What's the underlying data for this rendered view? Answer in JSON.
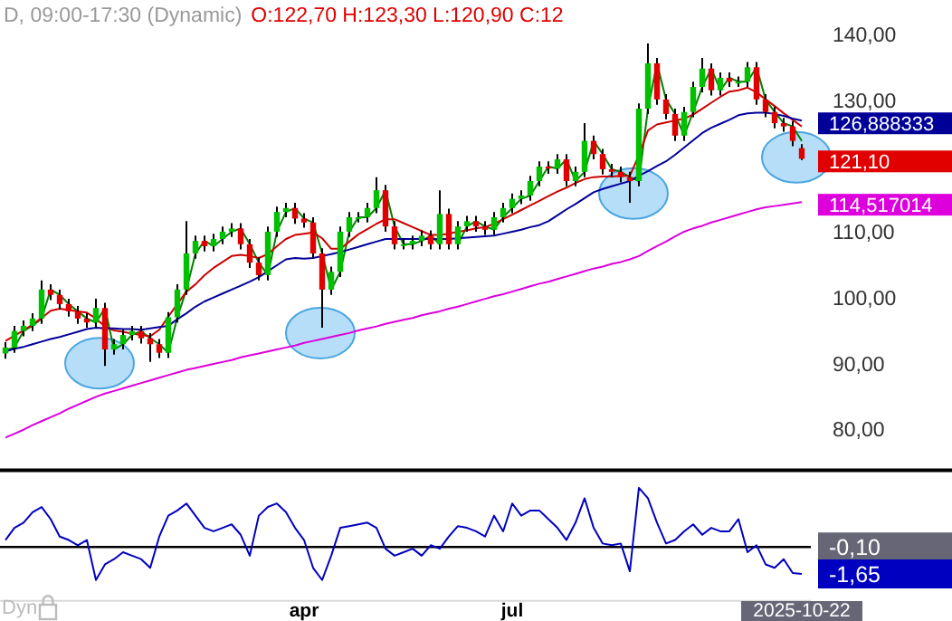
{
  "chart_data": [
    {
      "type": "candlestick",
      "title": "D, 09:00-17:30 (Dynamic)",
      "subtitle": "O:122,70 H:123,30 L:120,90 C:12",
      "ohlc": [
        [
          91.5,
          93.2,
          90.7,
          92.4
        ],
        [
          92.4,
          95.7,
          91.6,
          94.9
        ],
        [
          94.9,
          96.5,
          94.1,
          95.7
        ],
        [
          95.7,
          97.6,
          94.9,
          96.8
        ],
        [
          96.8,
          102.6,
          96.0,
          101.2
        ],
        [
          101.2,
          102.0,
          99.6,
          100.4
        ],
        [
          100.4,
          101.2,
          98.2,
          99.0
        ],
        [
          99.0,
          99.8,
          97.1,
          97.9
        ],
        [
          97.9,
          98.7,
          96.0,
          96.8
        ],
        [
          96.8,
          97.6,
          95.4,
          96.2
        ],
        [
          96.2,
          99.8,
          95.4,
          98.4
        ],
        [
          98.4,
          99.2,
          89.6,
          92.1
        ],
        [
          92.1,
          93.7,
          91.3,
          92.9
        ],
        [
          92.9,
          95.1,
          92.1,
          94.3
        ],
        [
          94.3,
          95.7,
          93.5,
          94.9
        ],
        [
          94.9,
          95.7,
          93.0,
          93.8
        ],
        [
          93.8,
          94.6,
          90.2,
          92.9
        ],
        [
          92.9,
          93.7,
          90.8,
          91.6
        ],
        [
          91.6,
          97.8,
          90.8,
          97.0
        ],
        [
          97.0,
          102.0,
          96.2,
          101.2
        ],
        [
          101.2,
          111.6,
          100.4,
          106.7
        ],
        [
          106.7,
          109.4,
          105.9,
          108.6
        ],
        [
          108.6,
          109.4,
          107.0,
          107.8
        ],
        [
          107.8,
          109.7,
          107.0,
          108.9
        ],
        [
          108.9,
          110.8,
          108.1,
          110.0
        ],
        [
          110.0,
          111.3,
          109.2,
          110.5
        ],
        [
          110.5,
          111.3,
          107.3,
          108.1
        ],
        [
          108.1,
          108.9,
          104.5,
          105.3
        ],
        [
          105.3,
          106.1,
          102.6,
          103.4
        ],
        [
          103.4,
          110.8,
          102.6,
          110.0
        ],
        [
          110.0,
          113.8,
          109.2,
          113.0
        ],
        [
          113.0,
          114.4,
          112.2,
          113.6
        ],
        [
          113.6,
          114.4,
          111.2,
          112.0
        ],
        [
          112.0,
          112.8,
          110.6,
          111.4
        ],
        [
          111.4,
          112.2,
          105.9,
          106.7
        ],
        [
          106.7,
          107.5,
          95.4,
          101.2
        ],
        [
          101.2,
          104.7,
          100.4,
          103.9
        ],
        [
          103.9,
          110.8,
          103.1,
          110.0
        ],
        [
          110.0,
          113.0,
          109.2,
          112.2
        ],
        [
          112.2,
          113.0,
          111.4,
          112.2
        ],
        [
          112.2,
          114.4,
          111.4,
          113.6
        ],
        [
          113.6,
          118.3,
          112.8,
          116.3
        ],
        [
          116.3,
          117.1,
          110.0,
          110.8
        ],
        [
          110.8,
          111.6,
          107.3,
          108.1
        ],
        [
          108.1,
          108.9,
          107.3,
          108.1
        ],
        [
          108.1,
          109.4,
          107.3,
          108.6
        ],
        [
          108.6,
          110.2,
          107.8,
          109.4
        ],
        [
          109.4,
          110.2,
          107.3,
          108.1
        ],
        [
          108.1,
          116.3,
          107.3,
          112.7
        ],
        [
          112.7,
          113.5,
          107.3,
          108.1
        ],
        [
          108.1,
          111.6,
          107.3,
          110.8
        ],
        [
          110.8,
          112.4,
          110.0,
          111.6
        ],
        [
          111.6,
          112.4,
          110.0,
          110.8
        ],
        [
          110.8,
          111.6,
          109.5,
          110.3
        ],
        [
          110.3,
          113.0,
          109.5,
          112.2
        ],
        [
          112.2,
          114.4,
          111.4,
          113.6
        ],
        [
          113.6,
          115.8,
          112.8,
          115.0
        ],
        [
          115.0,
          116.3,
          114.2,
          115.5
        ],
        [
          115.5,
          118.5,
          114.7,
          117.7
        ],
        [
          117.7,
          120.7,
          116.9,
          119.9
        ],
        [
          119.9,
          120.7,
          118.8,
          119.6
        ],
        [
          119.6,
          121.8,
          118.8,
          121.0
        ],
        [
          121.0,
          121.8,
          116.9,
          117.7
        ],
        [
          117.7,
          119.9,
          116.9,
          119.1
        ],
        [
          119.1,
          126.5,
          118.3,
          123.8
        ],
        [
          123.8,
          124.6,
          121.0,
          121.8
        ],
        [
          121.8,
          122.6,
          118.7,
          119.5
        ],
        [
          119.5,
          120.3,
          118.3,
          119.1
        ],
        [
          119.1,
          119.9,
          117.5,
          118.3
        ],
        [
          118.3,
          119.1,
          114.4,
          117.7
        ],
        [
          117.7,
          129.5,
          116.9,
          128.7
        ],
        [
          128.7,
          138.6,
          127.9,
          135.6
        ],
        [
          135.6,
          136.4,
          129.3,
          130.1
        ],
        [
          130.1,
          130.9,
          127.1,
          127.9
        ],
        [
          127.9,
          128.7,
          123.8,
          124.6
        ],
        [
          124.6,
          129.0,
          123.8,
          128.2
        ],
        [
          128.2,
          132.8,
          127.4,
          132.0
        ],
        [
          132.0,
          136.4,
          131.2,
          134.8
        ],
        [
          134.8,
          135.6,
          130.7,
          131.5
        ],
        [
          131.5,
          134.2,
          130.7,
          133.4
        ],
        [
          133.4,
          134.2,
          132.0,
          132.8
        ],
        [
          132.8,
          133.6,
          132.0,
          132.8
        ],
        [
          132.8,
          135.8,
          132.0,
          135.0
        ],
        [
          135.0,
          135.8,
          129.3,
          130.1
        ],
        [
          130.1,
          130.9,
          127.4,
          128.2
        ],
        [
          128.2,
          129.0,
          125.7,
          126.5
        ],
        [
          126.5,
          127.3,
          125.2,
          126.0
        ],
        [
          126.0,
          126.8,
          123.0,
          123.8
        ],
        [
          122.7,
          123.3,
          120.9,
          121.1
        ]
      ],
      "series": [
        {
          "type": "line",
          "color": "#008000",
          "values": [
            92.0,
            92.4,
            94.9,
            95.7,
            96.8,
            101.2,
            100.4,
            99.0,
            97.9,
            96.8,
            96.2,
            98.4,
            92.1,
            92.9,
            94.3,
            94.9,
            93.8,
            92.9,
            91.6,
            97.0,
            101.2,
            106.7,
            108.6,
            107.8,
            108.9,
            110.0,
            110.5,
            108.1,
            105.3,
            103.4,
            110.0,
            113.0,
            113.6,
            112.0,
            111.4,
            106.7,
            101.2,
            103.9,
            110.0,
            112.2,
            112.2,
            113.6,
            116.3,
            110.8,
            108.1,
            108.1,
            108.6,
            109.4,
            108.1,
            null,
            108.1,
            110.8,
            111.6,
            110.8,
            110.3,
            112.2,
            113.6,
            115.0,
            115.5,
            117.7,
            119.9,
            119.6,
            121.0,
            117.7,
            119.1,
            123.8,
            121.8,
            119.5,
            119.1,
            118.3,
            117.7,
            128.7,
            135.6,
            130.1,
            127.9,
            124.6,
            128.2,
            132.0,
            134.8,
            131.5,
            133.4,
            132.8,
            132.8,
            135.0,
            130.1,
            128.2,
            126.5,
            126.0,
            123.8
          ]
        },
        {
          "type": "line",
          "color": "#cc0000",
          "values": [
            93.4,
            94.2,
            95.0,
            95.9,
            96.9,
            98.0,
            98.3,
            98.1,
            97.9,
            97.7,
            96.8,
            95.6,
            95.0,
            94.8,
            94.5,
            94.3,
            94.1,
            95.1,
            97.1,
            99.0,
            100.9,
            102.0,
            103.4,
            104.5,
            105.4,
            106.3,
            106.5,
            106.3,
            106.0,
            106.6,
            107.8,
            108.9,
            109.5,
            109.7,
            109.9,
            109.0,
            107.4,
            107.4,
            108.5,
            109.6,
            110.4,
            111.2,
            111.9,
            111.9,
            111.3,
            110.7,
            110.1,
            109.5,
            109.5,
            109.7,
            110.0,
            110.2,
            110.5,
            110.7,
            111.2,
            111.9,
            112.6,
            113.3,
            114.0,
            114.7,
            115.4,
            116.1,
            116.7,
            117.4,
            118.0,
            118.3,
            118.4,
            118.4,
            118.5,
            118.5,
            121.6,
            125.4,
            126.3,
            126.6,
            126.9,
            127.2,
            127.8,
            128.7,
            129.6,
            130.5,
            131.3,
            131.5,
            131.9,
            131.2,
            130.1,
            129.1,
            128.0,
            127.0,
            126.0
          ]
        },
        {
          "type": "line",
          "color": "#000099",
          "values": [
            91.8,
            92.2,
            92.5,
            92.9,
            93.3,
            93.7,
            94.0,
            94.4,
            94.8,
            95.2,
            95.4,
            95.3,
            95.3,
            95.2,
            95.2,
            95.1,
            95.3,
            95.5,
            95.7,
            96.7,
            97.6,
            98.6,
            99.4,
            100.0,
            100.6,
            101.2,
            101.8,
            102.4,
            103.1,
            104.0,
            104.9,
            105.8,
            106.0,
            105.9,
            106.0,
            106.3,
            106.6,
            106.9,
            107.3,
            107.7,
            108.1,
            108.5,
            108.9,
            108.9,
            108.9,
            108.9,
            108.9,
            108.9,
            108.9,
            108.9,
            109.0,
            109.1,
            109.2,
            109.3,
            109.4,
            109.7,
            110.0,
            110.3,
            110.7,
            111.0,
            111.6,
            112.5,
            113.4,
            114.2,
            115.1,
            116.0,
            116.5,
            116.9,
            117.3,
            117.7,
            118.5,
            119.2,
            120.0,
            120.7,
            121.7,
            122.8,
            123.9,
            125.0,
            125.8,
            126.4,
            127.0,
            127.7,
            128.0,
            128.1,
            128.1,
            127.9,
            127.6,
            127.2,
            126.888333
          ],
          "value_labels": [
            null,
            null,
            null,
            null,
            null,
            null,
            null,
            null,
            null,
            null,
            null,
            null,
            null,
            null,
            null,
            null,
            null,
            null,
            null,
            null,
            null,
            null,
            null,
            null,
            null,
            null,
            null,
            null,
            null,
            null,
            null,
            null,
            null,
            null,
            null,
            null,
            null,
            null,
            null,
            null,
            null,
            null,
            null,
            null,
            null,
            null,
            null,
            null,
            null,
            null,
            null,
            null,
            null,
            null,
            null,
            null,
            null,
            null,
            null,
            null,
            null,
            null,
            null,
            null,
            null,
            null,
            null,
            null,
            null,
            null,
            null,
            null,
            null,
            null,
            null,
            null,
            null,
            null,
            null,
            null,
            null,
            null,
            null,
            null,
            null,
            null,
            null,
            null,
            "126,888333"
          ]
        },
        {
          "type": "line",
          "color": "#dd00dd",
          "values": [
            78.7,
            79.3,
            79.9,
            80.6,
            81.2,
            81.8,
            82.4,
            83.1,
            83.7,
            84.3,
            84.9,
            85.4,
            85.8,
            86.2,
            86.6,
            87.0,
            87.4,
            87.8,
            88.2,
            88.6,
            89.0,
            89.3,
            89.6,
            89.9,
            90.2,
            90.5,
            90.9,
            91.2,
            91.5,
            91.8,
            92.1,
            92.4,
            92.7,
            93.1,
            93.4,
            93.7,
            94.0,
            94.3,
            94.6,
            95.0,
            95.3,
            95.6,
            96.0,
            96.3,
            96.6,
            96.9,
            97.3,
            97.6,
            97.9,
            98.3,
            98.6,
            99.0,
            99.4,
            99.8,
            100.2,
            100.5,
            100.9,
            101.3,
            101.7,
            102.1,
            102.4,
            102.8,
            103.2,
            103.6,
            104.0,
            104.4,
            104.7,
            105.1,
            105.4,
            105.8,
            106.3,
            107.1,
            107.8,
            108.5,
            109.3,
            110.0,
            110.5,
            110.9,
            111.4,
            111.8,
            112.2,
            112.6,
            113.0,
            113.4,
            113.7,
            113.9,
            114.1,
            114.3,
            114.517014
          ],
          "value_labels": [
            null,
            null,
            null,
            null,
            null,
            null,
            null,
            null,
            null,
            null,
            null,
            null,
            null,
            null,
            null,
            null,
            null,
            null,
            null,
            null,
            null,
            null,
            null,
            null,
            null,
            null,
            null,
            null,
            null,
            null,
            null,
            null,
            null,
            null,
            null,
            null,
            null,
            null,
            null,
            null,
            null,
            null,
            null,
            null,
            null,
            null,
            null,
            null,
            null,
            null,
            null,
            null,
            null,
            null,
            null,
            null,
            null,
            null,
            null,
            null,
            null,
            null,
            null,
            null,
            null,
            null,
            null,
            null,
            null,
            null,
            null,
            null,
            null,
            null,
            null,
            null,
            null,
            null,
            null,
            null,
            null,
            null,
            null,
            null,
            null,
            null,
            null,
            null,
            "114,517014"
          ]
        }
      ],
      "ylim": [
        74,
        145
      ],
      "yticks": [
        {
          "value": 140,
          "label": "140,00"
        },
        {
          "value": 130,
          "label": "130,00"
        },
        {
          "value": 110,
          "label": "110,00"
        },
        {
          "value": 100,
          "label": "100,00"
        },
        {
          "value": 90,
          "label": "90,00"
        },
        {
          "value": 80,
          "label": "80,00"
        }
      ],
      "value_labels": [
        null,
        null,
        null,
        null,
        null,
        null,
        null,
        null,
        null,
        null,
        null,
        null,
        null,
        null,
        null,
        null,
        null,
        null,
        null,
        null,
        null,
        null,
        null,
        null,
        null,
        null,
        null,
        null,
        null,
        null,
        null,
        null,
        null,
        null,
        null,
        null,
        null,
        null,
        null,
        null,
        null,
        null,
        null,
        null,
        null,
        null,
        null,
        null,
        null,
        null,
        null,
        null,
        null,
        null,
        null,
        null,
        null,
        null,
        null,
        null,
        null,
        null,
        null,
        null,
        null,
        null,
        null,
        null,
        null,
        null,
        null,
        null,
        null,
        null,
        null,
        null,
        null,
        null,
        null,
        null,
        null,
        null,
        null,
        null,
        null,
        null,
        null,
        null,
        "121,10"
      ],
      "tick_labels": "y",
      "grid": false
    },
    {
      "type": "line",
      "categories": [
        null,
        null,
        null,
        null,
        null,
        null,
        null,
        null,
        null,
        null,
        null,
        null,
        null,
        null,
        null,
        null,
        null,
        null,
        null,
        null,
        null,
        null,
        null,
        null,
        null,
        null,
        null,
        null,
        null,
        null,
        null,
        null,
        null,
        "apr",
        null,
        null,
        null,
        null,
        null,
        null,
        null,
        null,
        null,
        null,
        null,
        null,
        null,
        null,
        null,
        null,
        null,
        null,
        null,
        null,
        null,
        null,
        "jul",
        null,
        null,
        null,
        null,
        null,
        null,
        null,
        null,
        null,
        null,
        null,
        null,
        null,
        null,
        null,
        null,
        null,
        null,
        null,
        null,
        null,
        null,
        null,
        null,
        null,
        null,
        null,
        null,
        null,
        null,
        null,
        "2025-10-22"
      ],
      "series": [
        {
          "color": "#0000c0",
          "values": [
            0.3,
            1.0,
            1.3,
            1.9,
            2.2,
            1.5,
            0.5,
            0.3,
            0.0,
            0.3,
            -2.0,
            -1.1,
            -0.8,
            -0.4,
            -0.6,
            -0.8,
            -1.3,
            0.5,
            1.7,
            2.0,
            2.4,
            1.7,
            1.0,
            0.8,
            1.0,
            1.2,
            0.6,
            -0.6,
            1.7,
            2.2,
            2.4,
            1.9,
            1.0,
            0.3,
            -1.3,
            -2.0,
            -0.6,
            1.0,
            1.1,
            1.2,
            1.3,
            1.0,
            -0.2,
            -0.6,
            -0.4,
            -0.2,
            -0.6,
            0.0,
            -0.2,
            0.5,
            1.1,
            1.0,
            0.8,
            0.5,
            1.7,
            0.8,
            2.4,
            1.7,
            2.0,
            2.0,
            1.5,
            1.0,
            0.3,
            1.3,
            2.7,
            1.0,
            0.1,
            0.0,
            0.1,
            -1.5,
            3.3,
            2.7,
            1.3,
            0.1,
            0.3,
            0.8,
            1.2,
            0.6,
            1.0,
            0.8,
            0.8,
            1.5,
            -0.4,
            0.0,
            -1.1,
            -1.3,
            -0.8,
            -1.6,
            -1.65
          ]
        }
      ],
      "ylim": [
        -3.2,
        4.2
      ],
      "yticks": [
        {
          "value": -0.1,
          "label": "-0,10"
        },
        {
          "value": -1.65,
          "label": "-1,65"
        }
      ],
      "ref_lines": [
        {
          "axis": "y",
          "value": -0.1,
          "color": "#000000"
        }
      ],
      "annotations": [
        "Dyn"
      ],
      "grid": false
    }
  ]
}
